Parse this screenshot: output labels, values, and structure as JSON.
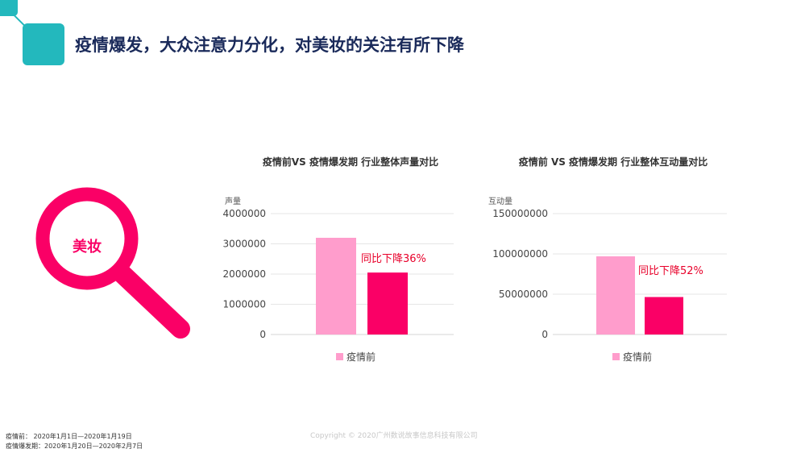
{
  "header": {
    "title": "疫情爆发，大众注意力分化，对美妆的关注有所下降"
  },
  "magnifier": {
    "label": "美妆",
    "icon": "magnifier-icon"
  },
  "colors": {
    "before": "#ff9dcc",
    "after": "#fa0066",
    "accent": "#23b8bd",
    "title": "#1a2a5a",
    "annotation": "#e8002a"
  },
  "chart_data": [
    {
      "type": "bar",
      "title": "疫情前VS 疫情爆发期 行业整体声量对比",
      "ylabel": "声量",
      "ylim": [
        0,
        4000000
      ],
      "yticks": [
        "4000000",
        "3000000",
        "2000000",
        "1000000",
        "0"
      ],
      "grid": true,
      "legend_position": "bottom",
      "series": [
        {
          "name": "疫情前",
          "values": [
            3200000
          ]
        },
        {
          "values": [
            2050000
          ]
        }
      ],
      "annotation": "同比下降36%"
    },
    {
      "type": "bar",
      "title": "疫情前 VS 疫情爆发期 行业整体互动量对比",
      "ylabel": "互动量",
      "ylim": [
        0,
        150000000
      ],
      "yticks": [
        "150000000",
        "100000000",
        "50000000",
        "0"
      ],
      "grid": true,
      "legend_position": "bottom",
      "series": [
        {
          "name": "疫情前",
          "values": [
            97000000
          ]
        },
        {
          "values": [
            46500000
          ]
        }
      ],
      "annotation": "同比下降52%"
    }
  ],
  "footnotes": [
    "疫情前：  2020年1月1日—2020年1月19日",
    "疫情爆发期：2020年1月20日—2020年2月7日"
  ],
  "copyright": "Copyright © 2020广州数说故事信息科技有限公司"
}
